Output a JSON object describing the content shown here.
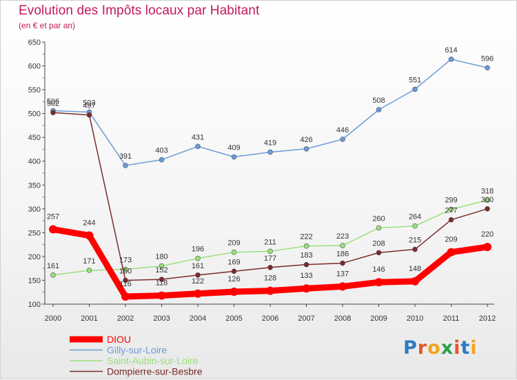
{
  "title": "Evolution des Impôts locaux par Habitant",
  "subtitle": "(en € et par an)",
  "logo": {
    "text": "Proxiti",
    "colors": [
      "#2e7bc4",
      "#e8552a",
      "#f2a51d",
      "#2e9e4a",
      "#e8552a",
      "#2e7bc4",
      "#f2a51d"
    ]
  },
  "chart_data": {
    "type": "line",
    "title": "Evolution des Impôts locaux par Habitant",
    "subtitle": "(en € et par an)",
    "x": [
      "2000",
      "2001",
      "2002",
      "2003",
      "2004",
      "2005",
      "2006",
      "2007",
      "2008",
      "2009",
      "2010",
      "2011",
      "2012"
    ],
    "ylim": [
      100,
      650
    ],
    "yticks": [
      100,
      150,
      200,
      250,
      300,
      350,
      400,
      450,
      500,
      550,
      600,
      650
    ],
    "grid": false,
    "legend_position": "bottom-left",
    "series": [
      {
        "name": "DIOU",
        "color": "#ff0000",
        "values": [
          257,
          244,
          116,
          118,
          122,
          126,
          128,
          133,
          137,
          146,
          148,
          209,
          220
        ]
      },
      {
        "name": "Gilly-sur-Loire",
        "color": "#6a9bd8",
        "values": [
          506,
          503,
          391,
          403,
          431,
          409,
          419,
          426,
          446,
          508,
          551,
          614,
          596
        ]
      },
      {
        "name": "Saint-Aubin-sur-Loire",
        "color": "#99e07a",
        "values": [
          161,
          171,
          173,
          180,
          196,
          209,
          211,
          222,
          223,
          260,
          264,
          299,
          318
        ]
      },
      {
        "name": "Dompierre-sur-Besbre",
        "color": "#7a2a2a",
        "values": [
          502,
          497,
          150,
          152,
          161,
          169,
          177,
          183,
          186,
          208,
          215,
          277,
          300
        ]
      }
    ]
  }
}
